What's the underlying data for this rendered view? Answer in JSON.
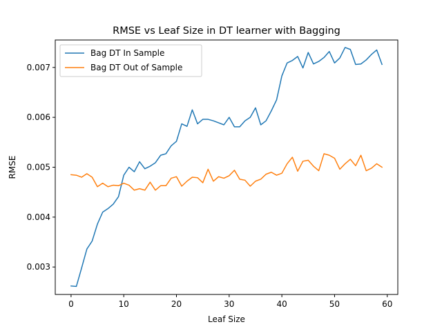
{
  "chart_data": {
    "type": "line",
    "title": "RMSE vs Leaf Size in DT learner with Bagging",
    "xlabel": "Leaf Size",
    "ylabel": "RMSE",
    "xlim": [
      -3,
      62
    ],
    "ylim": [
      0.00245,
      0.00755
    ],
    "xticks": [
      0,
      10,
      20,
      30,
      40,
      50,
      60
    ],
    "yticks": [
      0.003,
      0.004,
      0.005,
      0.006,
      0.007
    ],
    "ytick_labels": [
      "0.003",
      "0.004",
      "0.005",
      "0.006",
      "0.007"
    ],
    "grid": false,
    "legend_position": "upper-left",
    "x": [
      0,
      1,
      2,
      3,
      4,
      5,
      6,
      7,
      8,
      9,
      10,
      11,
      12,
      13,
      14,
      15,
      16,
      17,
      18,
      19,
      20,
      21,
      22,
      23,
      24,
      25,
      26,
      27,
      28,
      29,
      30,
      31,
      32,
      33,
      34,
      35,
      36,
      37,
      38,
      39,
      40,
      41,
      42,
      43,
      44,
      45,
      46,
      47,
      48,
      49,
      50,
      51,
      52,
      53,
      54,
      55,
      56,
      57,
      58,
      59
    ],
    "series": [
      {
        "name": "Bag DT In Sample",
        "color": "#1f77b4",
        "values": [
          0.00262,
          0.00261,
          0.00298,
          0.00336,
          0.00352,
          0.00386,
          0.0041,
          0.00417,
          0.00426,
          0.00441,
          0.00484,
          0.005,
          0.00491,
          0.00511,
          0.00497,
          0.00502,
          0.00509,
          0.00524,
          0.00527,
          0.00543,
          0.00552,
          0.00587,
          0.00582,
          0.00615,
          0.00587,
          0.00596,
          0.00596,
          0.00593,
          0.00589,
          0.00585,
          0.006,
          0.00581,
          0.00581,
          0.00593,
          0.006,
          0.00619,
          0.00585,
          0.00593,
          0.00613,
          0.00635,
          0.00683,
          0.00709,
          0.00714,
          0.00722,
          0.00699,
          0.0073,
          0.00707,
          0.00712,
          0.0072,
          0.00732,
          0.00709,
          0.00719,
          0.0074,
          0.00736,
          0.00706,
          0.00707,
          0.00715,
          0.00726,
          0.00735,
          0.00706
        ]
      },
      {
        "name": "Bag DT Out of Sample",
        "color": "#ff7f0e",
        "values": [
          0.00485,
          0.00484,
          0.0048,
          0.00487,
          0.0048,
          0.00461,
          0.00468,
          0.00461,
          0.00464,
          0.00463,
          0.00468,
          0.00464,
          0.00454,
          0.00457,
          0.00454,
          0.0047,
          0.00454,
          0.00463,
          0.00463,
          0.00478,
          0.00481,
          0.00462,
          0.00472,
          0.0048,
          0.00479,
          0.00469,
          0.00496,
          0.00472,
          0.00481,
          0.00478,
          0.00483,
          0.00494,
          0.00476,
          0.00474,
          0.00462,
          0.00472,
          0.00476,
          0.00486,
          0.0049,
          0.00484,
          0.00488,
          0.00507,
          0.0052,
          0.00492,
          0.00512,
          0.00514,
          0.00502,
          0.00493,
          0.00527,
          0.00524,
          0.00518,
          0.00496,
          0.00507,
          0.00516,
          0.00503,
          0.00524,
          0.00493,
          0.00498,
          0.00507,
          0.005
        ]
      }
    ]
  }
}
